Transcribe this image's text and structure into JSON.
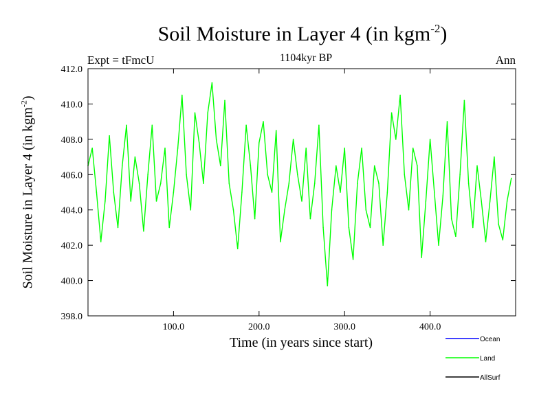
{
  "chart_data": {
    "type": "line",
    "title": "Soil Moisture in Layer 4 (in kgm",
    "title_sup": "-2",
    "title_end": ")",
    "subtitle": "1104kyr BP",
    "left_label": "Expt = tFmcU",
    "right_label": "Ann",
    "xlabel": "Time (in years since start)",
    "ylabel": "Soil Moisture in Layer 4 (in kgm",
    "ylabel_sup": "-2",
    "ylabel_end": ")",
    "xlim": [
      0,
      500
    ],
    "ylim": [
      398,
      412
    ],
    "xticks": [
      100,
      200,
      300,
      400
    ],
    "xtick_labels": [
      "100.0",
      "200.0",
      "300.0",
      "400.0"
    ],
    "yticks": [
      398,
      400,
      402,
      404,
      406,
      408,
      410,
      412
    ],
    "ytick_labels": [
      "398.0",
      "400.0",
      "402.0",
      "404.0",
      "406.0",
      "408.0",
      "410.0",
      "412.0"
    ],
    "legend": [
      {
        "name": "Ocean",
        "color": "#0000ff"
      },
      {
        "name": "Land",
        "color": "#00ff00"
      },
      {
        "name": "AllSurf",
        "color": "#000000"
      }
    ],
    "series": [
      {
        "name": "Land",
        "color": "#00ff00",
        "x": [
          0,
          5,
          10,
          15,
          20,
          25,
          30,
          35,
          40,
          45,
          50,
          55,
          60,
          65,
          70,
          75,
          80,
          85,
          90,
          95,
          100,
          105,
          110,
          115,
          120,
          125,
          130,
          135,
          140,
          145,
          150,
          155,
          160,
          165,
          170,
          175,
          180,
          185,
          190,
          195,
          200,
          205,
          210,
          215,
          220,
          225,
          230,
          235,
          240,
          245,
          250,
          255,
          260,
          265,
          270,
          275,
          280,
          285,
          290,
          295,
          300,
          305,
          310,
          315,
          320,
          325,
          330,
          335,
          340,
          345,
          350,
          355,
          360,
          365,
          370,
          375,
          380,
          385,
          390,
          395,
          400,
          405,
          410,
          415,
          420,
          425,
          430,
          435,
          440,
          445,
          450,
          455,
          460,
          465,
          470,
          475,
          480,
          485,
          490,
          495
        ],
        "values": [
          406.5,
          407.5,
          405.0,
          402.2,
          404.5,
          408.2,
          405.0,
          403.0,
          406.5,
          408.8,
          404.5,
          407.0,
          405.5,
          402.8,
          406.0,
          408.8,
          404.5,
          405.5,
          407.5,
          403.0,
          405.0,
          407.5,
          410.5,
          406.0,
          404.0,
          409.5,
          407.8,
          405.5,
          409.5,
          411.2,
          408.0,
          406.5,
          410.2,
          405.5,
          404.0,
          401.8,
          405.0,
          408.8,
          406.5,
          403.5,
          407.8,
          409.0,
          406.0,
          405.0,
          408.5,
          402.2,
          404.0,
          405.5,
          408.0,
          406.0,
          404.5,
          407.5,
          403.5,
          405.5,
          408.8,
          403.0,
          399.7,
          404.0,
          406.5,
          405.0,
          407.5,
          403.0,
          401.2,
          405.5,
          407.5,
          404.0,
          403.0,
          406.5,
          405.5,
          402.0,
          405.0,
          409.5,
          408.0,
          410.5,
          406.0,
          404.0,
          407.5,
          406.5,
          401.3,
          404.5,
          408.0,
          405.0,
          402.0,
          404.8,
          409.0,
          403.5,
          402.5,
          406.0,
          410.2,
          405.5,
          403.0,
          406.5,
          404.5,
          402.2,
          404.5,
          407.0,
          403.2,
          402.3,
          404.5,
          405.8
        ]
      }
    ]
  }
}
